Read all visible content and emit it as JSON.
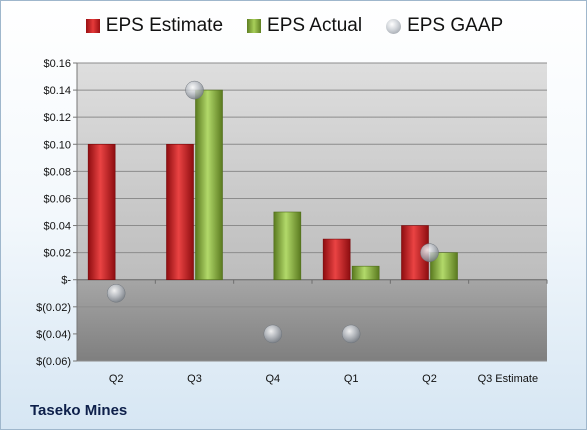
{
  "company": "Taseko Mines",
  "chart_data": {
    "type": "bar",
    "categories": [
      "Q2",
      "Q3",
      "Q4",
      "Q1",
      "Q2",
      "Q3 Estimate"
    ],
    "series": [
      {
        "name": "EPS Estimate",
        "type": "bar",
        "color": "#c8191c",
        "values": [
          0.1,
          0.1,
          null,
          0.03,
          0.04,
          null
        ]
      },
      {
        "name": "EPS Actual",
        "type": "bar",
        "color": "#7fa33a",
        "values": [
          null,
          0.14,
          0.05,
          0.01,
          0.02,
          null
        ]
      },
      {
        "name": "EPS GAAP",
        "type": "marker",
        "color": "#b8bcc2",
        "values": [
          -0.01,
          0.14,
          -0.04,
          -0.04,
          0.02,
          null
        ]
      }
    ],
    "yticks": [
      -0.06,
      -0.04,
      -0.02,
      0,
      0.02,
      0.04,
      0.06,
      0.08,
      0.1,
      0.12,
      0.14,
      0.16
    ],
    "ytick_labels": [
      "$(0.06)",
      "$(0.04)",
      "$(0.02)",
      "$-",
      "$0.02",
      "$0.04",
      "$0.06",
      "$0.08",
      "$0.10",
      "$0.12",
      "$0.14",
      "$0.16"
    ],
    "ylim": [
      -0.06,
      0.16
    ],
    "grid": true,
    "legend": "top",
    "title": "",
    "xlabel": "",
    "ylabel": ""
  }
}
